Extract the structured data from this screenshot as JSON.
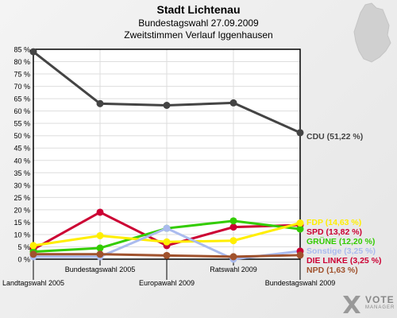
{
  "header": {
    "title": "Stadt Lichtenau",
    "subtitle": "Bundestagswahl 27.09.2009",
    "subtitle2": "Zweitstimmen Verlauf Iggenhausen"
  },
  "logo": {
    "text1": "VOTE",
    "text2": "MANAGER"
  },
  "chart_data": {
    "type": "line",
    "title": "Stadt Lichtenau",
    "categories": [
      "Landtagswahl 2005",
      "Bundestagswahl 2005",
      "Europawahl 2009",
      "Ratswahl 2009",
      "Bundestagswahl 2009"
    ],
    "ylim": [
      0,
      85
    ],
    "yticks": [
      "0 %",
      "5 %",
      "10 %",
      "15 %",
      "20 %",
      "25 %",
      "30 %",
      "35 %",
      "40 %",
      "45 %",
      "50 %",
      "55 %",
      "60 %",
      "65 %",
      "70 %",
      "75 %",
      "80 %",
      "85 %"
    ],
    "grid": true,
    "series": [
      {
        "name": "CDU",
        "color": "#444444",
        "values": [
          84.0,
          63.0,
          62.3,
          63.3,
          51.22
        ],
        "label": "CDU (51,22 %)"
      },
      {
        "name": "SPD",
        "color": "#cc0033",
        "values": [
          4.0,
          19.0,
          5.5,
          13.0,
          13.82
        ],
        "label": "SPD (13,82 %)"
      },
      {
        "name": "GRÜNE",
        "color": "#33cc00",
        "values": [
          3.0,
          4.5,
          12.5,
          15.5,
          12.2
        ],
        "label": "GRÜNE (12,20 %)"
      },
      {
        "name": "FDP",
        "color": "#ffee00",
        "values": [
          5.5,
          9.5,
          7.0,
          7.5,
          14.63
        ],
        "label": "FDP (14,63 %)"
      },
      {
        "name": "Sonstige",
        "color": "#aabbee",
        "values": [
          1.0,
          1.0,
          12.5,
          0.0,
          3.25
        ],
        "label": "Sonstige (3,25 %)"
      },
      {
        "name": "DIE LINKE",
        "color": "#cc0033",
        "values": [
          null,
          null,
          null,
          null,
          3.25
        ],
        "label": "DIE LINKE (3,25 %)"
      },
      {
        "name": "NPD",
        "color": "#a0522d",
        "values": [
          2.0,
          2.0,
          1.5,
          1.0,
          1.63
        ],
        "label": "NPD (1,63 %)"
      }
    ]
  }
}
